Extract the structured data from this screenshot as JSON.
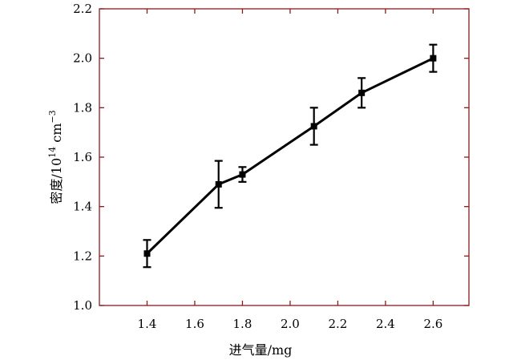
{
  "chart_data": {
    "type": "line",
    "title": "",
    "xlabel": "进气量/mg",
    "ylabel_prefix": "密度/10",
    "ylabel_exp": "14",
    "ylabel_unit": " cm",
    "ylabel_unit_exp": "−3",
    "xlim": [
      1.2,
      2.75
    ],
    "ylim": [
      1.0,
      2.2
    ],
    "xticks": [
      1.4,
      1.6,
      1.8,
      2.0,
      2.2,
      2.4,
      2.6
    ],
    "xtick_labels": [
      "1.4",
      "1.6",
      "1.8",
      "2.0",
      "2.2",
      "2.4",
      "2.6"
    ],
    "yticks": [
      1.0,
      1.2,
      1.4,
      1.6,
      1.8,
      2.0,
      2.2
    ],
    "ytick_labels": [
      "1.0",
      "1.2",
      "1.4",
      "1.6",
      "1.8",
      "2.0",
      "2.2"
    ],
    "grid": false,
    "series": [
      {
        "x": [
          1.4,
          1.7,
          1.8,
          2.1,
          2.3,
          2.6
        ],
        "y": [
          1.21,
          1.49,
          1.53,
          1.725,
          1.86,
          2.0
        ],
        "err": [
          0.055,
          0.095,
          0.03,
          0.075,
          0.06,
          0.055
        ]
      }
    ]
  },
  "colors": {
    "axis": "#8b1a1a",
    "series": "#000000"
  }
}
